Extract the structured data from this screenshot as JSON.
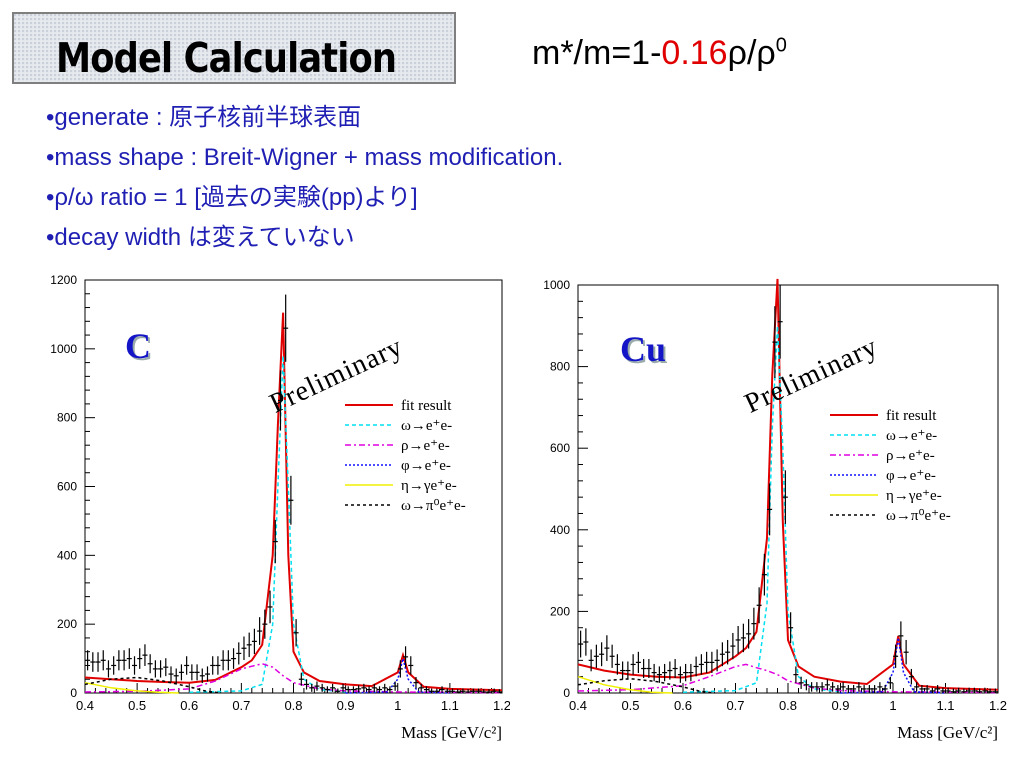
{
  "slide": {
    "title": "Model Calculation",
    "formula": {
      "prefix": "m*/m=1-",
      "coef": "0.16",
      "rho": "ρ",
      "slash": "/",
      "rho0": "ρ",
      "sup": "0"
    },
    "bullets": [
      {
        "mark": "•",
        "text": "generate : 原子核前半球表面"
      },
      {
        "mark": "•",
        "text": "mass shape : Breit-Wigner + mass modification."
      },
      {
        "mark": "•",
        "text": "ρ/ω ratio = 1 [過去の実験(pp)より]"
      },
      {
        "mark": "•",
        "text": "decay width は変えていない"
      }
    ]
  },
  "colors": {
    "fit": "#e00000",
    "omega": "#00e0f0",
    "rho": "#e000e0",
    "phi": "#1010ff",
    "eta": "#f0f000",
    "dalitz": "#000000",
    "coef": "#e00000"
  },
  "chart_data": [
    {
      "type": "line",
      "target_label": "C",
      "watermark": "Preliminary",
      "xlabel": "Mass [GeV/c²]",
      "xlim": [
        0.4,
        1.2
      ],
      "ylim": [
        0,
        1200
      ],
      "xticks": [
        "0.4",
        "0.5",
        "0.6",
        "0.7",
        "0.8",
        "0.9",
        "1",
        "1.1",
        "1.2"
      ],
      "yticks": [
        "0",
        "200",
        "400",
        "600",
        "800",
        "1000",
        "1200"
      ],
      "legend": [
        "fit result",
        "ω→e⁺e-",
        "ρ→e⁺e-",
        "φ→e⁺e-",
        "η→γe⁺e-",
        "ω→π⁰e⁺e-"
      ],
      "legend_position": "right",
      "series": [
        {
          "name": "fit result",
          "x": [
            0.4,
            0.45,
            0.5,
            0.55,
            0.6,
            0.65,
            0.7,
            0.72,
            0.74,
            0.76,
            0.77,
            0.78,
            0.79,
            0.8,
            0.82,
            0.85,
            0.9,
            0.95,
            1.0,
            1.01,
            1.02,
            1.05,
            1.1,
            1.2
          ],
          "y": [
            45,
            40,
            35,
            32,
            30,
            38,
            75,
            95,
            140,
            400,
            780,
            1105,
            400,
            120,
            60,
            35,
            25,
            20,
            60,
            110,
            60,
            18,
            12,
            8
          ]
        },
        {
          "name": "ω→e⁺e-",
          "x": [
            0.6,
            0.7,
            0.74,
            0.76,
            0.77,
            0.78,
            0.79,
            0.8,
            0.82,
            0.85,
            0.9
          ],
          "y": [
            2,
            6,
            25,
            200,
            600,
            980,
            600,
            200,
            40,
            10,
            3
          ]
        },
        {
          "name": "ρ→e⁺e-",
          "x": [
            0.4,
            0.5,
            0.6,
            0.65,
            0.7,
            0.74,
            0.76,
            0.78,
            0.8,
            0.85,
            0.9,
            1.0,
            1.2
          ],
          "y": [
            3,
            5,
            12,
            35,
            70,
            85,
            75,
            50,
            30,
            12,
            6,
            3,
            1
          ]
        },
        {
          "name": "φ→e⁺e-",
          "x": [
            0.9,
            0.98,
            1.0,
            1.01,
            1.02,
            1.04,
            1.1
          ],
          "y": [
            0,
            3,
            40,
            100,
            40,
            3,
            0
          ]
        },
        {
          "name": "η→γe⁺e-",
          "x": [
            0.4,
            0.45,
            0.5,
            0.54,
            0.58
          ],
          "y": [
            30,
            15,
            6,
            2,
            0
          ]
        },
        {
          "name": "ω→π⁰e⁺e-",
          "x": [
            0.4,
            0.45,
            0.5,
            0.55,
            0.6,
            0.63,
            0.66
          ],
          "y": [
            25,
            40,
            45,
            35,
            18,
            6,
            0
          ]
        }
      ],
      "data_points": {
        "x": [
          0.405,
          0.415,
          0.425,
          0.435,
          0.445,
          0.455,
          0.465,
          0.475,
          0.485,
          0.495,
          0.505,
          0.515,
          0.525,
          0.535,
          0.545,
          0.555,
          0.565,
          0.575,
          0.585,
          0.595,
          0.605,
          0.615,
          0.625,
          0.635,
          0.645,
          0.655,
          0.665,
          0.675,
          0.685,
          0.695,
          0.705,
          0.715,
          0.725,
          0.735,
          0.745,
          0.755,
          0.765,
          0.775,
          0.785,
          0.795,
          0.805,
          0.815,
          0.825,
          0.835,
          0.845,
          0.855,
          0.865,
          0.875,
          0.885,
          0.895,
          0.905,
          0.915,
          0.925,
          0.935,
          0.945,
          0.955,
          0.965,
          0.975,
          0.985,
          0.995,
          1.005,
          1.015,
          1.025,
          1.035,
          1.045,
          1.055,
          1.065,
          1.075,
          1.085,
          1.095,
          1.105,
          1.115,
          1.125,
          1.135,
          1.145,
          1.155,
          1.165,
          1.175,
          1.185,
          1.195
        ],
        "y": [
          95,
          90,
          90,
          95,
          70,
          80,
          95,
          95,
          100,
          80,
          100,
          110,
          85,
          70,
          70,
          75,
          55,
          50,
          60,
          80,
          60,
          60,
          50,
          55,
          80,
          80,
          95,
          95,
          100,
          115,
          130,
          140,
          150,
          180,
          200,
          250,
          440,
          850,
          1060,
          560,
          175,
          40,
          25,
          15,
          20,
          15,
          10,
          15,
          5,
          15,
          10,
          10,
          12,
          15,
          10,
          15,
          10,
          15,
          10,
          20,
          70,
          105,
          80,
          30,
          15,
          10,
          5,
          5,
          10,
          5,
          5,
          3,
          5,
          3,
          5,
          5,
          3,
          3,
          5,
          3
        ]
      }
    },
    {
      "type": "line",
      "target_label": "Cu",
      "watermark": "Preliminary",
      "xlabel": "Mass [GeV/c²]",
      "xlim": [
        0.4,
        1.2
      ],
      "ylim": [
        0,
        1000
      ],
      "xticks": [
        "0.4",
        "0.5",
        "0.6",
        "0.7",
        "0.8",
        "0.9",
        "1",
        "1.1",
        "1.2"
      ],
      "yticks": [
        "0",
        "200",
        "400",
        "600",
        "800",
        "1000"
      ],
      "legend": [
        "fit result",
        "ω→e⁺e-",
        "ρ→e⁺e-",
        "φ→e⁺e-",
        "η→γe⁺e-",
        "ω→π⁰e⁺e-"
      ],
      "legend_position": "right",
      "series": [
        {
          "name": "fit result",
          "x": [
            0.4,
            0.45,
            0.5,
            0.55,
            0.6,
            0.65,
            0.7,
            0.72,
            0.74,
            0.76,
            0.77,
            0.78,
            0.79,
            0.8,
            0.82,
            0.85,
            0.9,
            0.95,
            1.0,
            1.01,
            1.02,
            1.05,
            1.1,
            1.2
          ],
          "y": [
            70,
            55,
            45,
            40,
            38,
            50,
            90,
            110,
            150,
            380,
            780,
            1015,
            420,
            130,
            65,
            40,
            28,
            22,
            70,
            140,
            70,
            18,
            12,
            8
          ]
        },
        {
          "name": "ω→e⁺e-",
          "x": [
            0.6,
            0.7,
            0.74,
            0.76,
            0.77,
            0.78,
            0.79,
            0.8,
            0.82,
            0.85,
            0.9
          ],
          "y": [
            2,
            6,
            25,
            220,
            650,
            900,
            600,
            200,
            40,
            10,
            3
          ]
        },
        {
          "name": "ρ→e⁺e-",
          "x": [
            0.4,
            0.5,
            0.6,
            0.65,
            0.7,
            0.72,
            0.74,
            0.76,
            0.78,
            0.8,
            0.85,
            0.9,
            1.0,
            1.2
          ],
          "y": [
            5,
            8,
            18,
            40,
            65,
            70,
            62,
            55,
            45,
            30,
            12,
            6,
            3,
            1
          ]
        },
        {
          "name": "φ→e⁺e-",
          "x": [
            0.9,
            0.98,
            1.0,
            1.01,
            1.02,
            1.04,
            1.1
          ],
          "y": [
            0,
            3,
            50,
            135,
            50,
            3,
            0
          ]
        },
        {
          "name": "η→γe⁺e-",
          "x": [
            0.4,
            0.45,
            0.5,
            0.54,
            0.58
          ],
          "y": [
            40,
            20,
            8,
            2,
            0
          ]
        },
        {
          "name": "ω→π⁰e⁺e-",
          "x": [
            0.4,
            0.45,
            0.5,
            0.55,
            0.6,
            0.63,
            0.66
          ],
          "y": [
            20,
            30,
            35,
            28,
            15,
            5,
            0
          ]
        }
      ],
      "data_points": {
        "x": [
          0.405,
          0.415,
          0.425,
          0.435,
          0.445,
          0.455,
          0.465,
          0.475,
          0.485,
          0.495,
          0.505,
          0.515,
          0.525,
          0.535,
          0.545,
          0.555,
          0.565,
          0.575,
          0.585,
          0.595,
          0.605,
          0.615,
          0.625,
          0.635,
          0.645,
          0.655,
          0.665,
          0.675,
          0.685,
          0.695,
          0.705,
          0.715,
          0.725,
          0.735,
          0.745,
          0.755,
          0.765,
          0.775,
          0.785,
          0.795,
          0.805,
          0.815,
          0.825,
          0.835,
          0.845,
          0.855,
          0.865,
          0.875,
          0.885,
          0.895,
          0.905,
          0.915,
          0.925,
          0.935,
          0.945,
          0.955,
          0.965,
          0.975,
          0.985,
          0.995,
          1.005,
          1.015,
          1.025,
          1.035,
          1.045,
          1.055,
          1.065,
          1.075,
          1.085,
          1.095,
          1.105,
          1.115,
          1.125,
          1.135,
          1.145,
          1.155,
          1.165,
          1.175,
          1.185,
          1.195
        ],
        "y": [
          120,
          125,
          80,
          90,
          95,
          110,
          90,
          70,
          55,
          55,
          70,
          75,
          60,
          60,
          50,
          45,
          50,
          55,
          60,
          45,
          50,
          50,
          65,
          70,
          75,
          75,
          80,
          95,
          100,
          115,
          130,
          135,
          145,
          170,
          215,
          290,
          450,
          860,
          910,
          480,
          160,
          45,
          25,
          20,
          15,
          15,
          15,
          20,
          15,
          10,
          15,
          10,
          10,
          15,
          10,
          10,
          10,
          15,
          10,
          25,
          90,
          140,
          100,
          40,
          15,
          10,
          10,
          5,
          10,
          5,
          5,
          3,
          5,
          3,
          5,
          5,
          3,
          5,
          3,
          3
        ]
      }
    }
  ]
}
